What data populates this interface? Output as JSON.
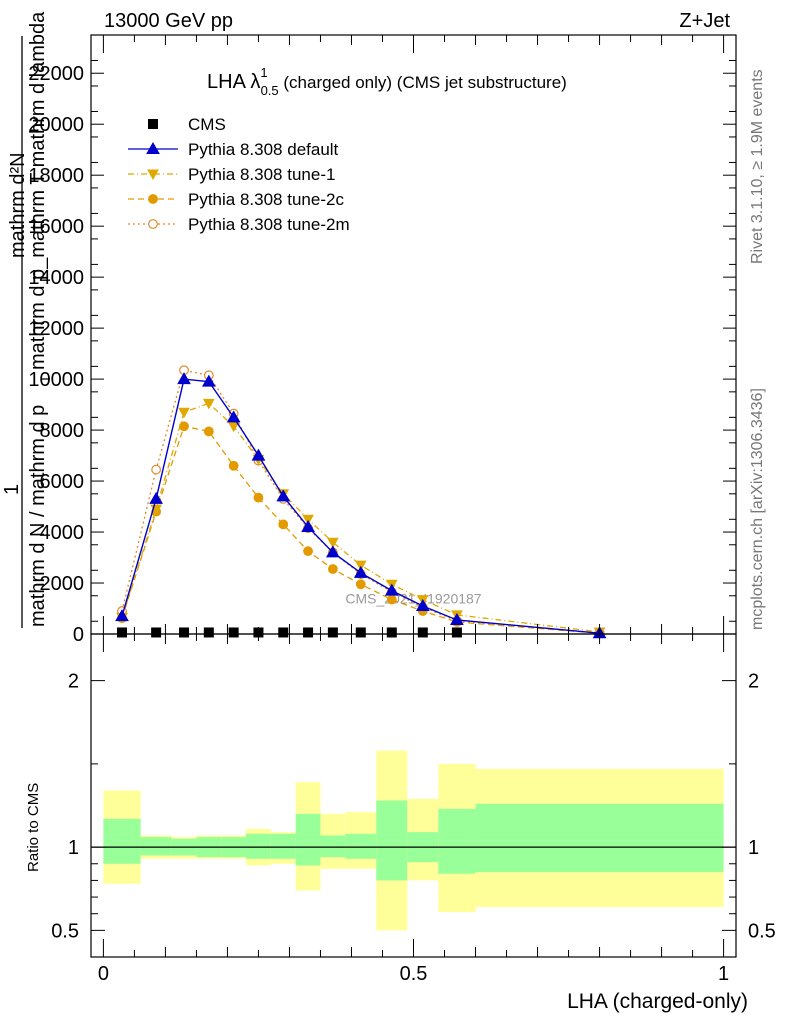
{
  "header": {
    "left": "13000 GeV pp",
    "right": "Z+Jet"
  },
  "side": {
    "rivet": "Rivet 3.1.10, ≥ 1.9M events",
    "mcplots": "mcplots.cern.ch [arXiv:1306.3436]"
  },
  "colors": {
    "cms": "#000000",
    "default": "#0000cc",
    "tune1": "#e0a800",
    "tune2c": "#e39a00",
    "tune2m": "#e08a2a",
    "band_inner": "#99ff99",
    "band_outer": "#ffff99"
  },
  "chart_data": [
    {
      "type": "line",
      "title_main": "LHA λ",
      "title_sup": "1",
      "title_sub": "0.5",
      "title_rest": " (charged only) (CMS jet substructure)",
      "ylabel_top": "mathrm d²N",
      "ylabel_frac": "1",
      "ylabel_mid": "mathrm d p_mathrm T mathrm d lambda",
      "ylabel_bottom": "mathrm d N / mathrm d p",
      "ylabel_sub": "T",
      "ylim": [
        0,
        23500
      ],
      "yticks": [
        0,
        2000,
        4000,
        6000,
        8000,
        10000,
        12000,
        14000,
        16000,
        18000,
        20000,
        22000
      ],
      "ytick_labels": [
        "0",
        "2000",
        "4000",
        "6000",
        "8000",
        "10000",
        "12000",
        "14000",
        "16000",
        "18000",
        "20000",
        "22000"
      ],
      "xlim": [
        -0.02,
        1.02
      ],
      "watermark": "CMS_2021_I1920187",
      "legend": [
        {
          "key": "cms",
          "label": "CMS"
        },
        {
          "key": "default",
          "label": "Pythia 8.308 default"
        },
        {
          "key": "tune1",
          "label": "Pythia 8.308 tune-1"
        },
        {
          "key": "tune2c",
          "label": "Pythia 8.308 tune-2c"
        },
        {
          "key": "tune2m",
          "label": "Pythia 8.308 tune-2m"
        }
      ],
      "cms_points": {
        "x": [
          0.03,
          0.085,
          0.13,
          0.17,
          0.21,
          0.25,
          0.29,
          0.33,
          0.37,
          0.415,
          0.465,
          0.515,
          0.57
        ],
        "y": [
          60,
          60,
          60,
          60,
          60,
          60,
          60,
          60,
          60,
          60,
          60,
          60,
          60
        ]
      },
      "series": [
        {
          "name": "Pythia 8.308 default",
          "key": "default",
          "x": [
            0.03,
            0.085,
            0.13,
            0.17,
            0.21,
            0.25,
            0.29,
            0.33,
            0.37,
            0.415,
            0.465,
            0.515,
            0.57,
            0.8
          ],
          "y": [
            700,
            5300,
            10000,
            9900,
            8500,
            7000,
            5400,
            4200,
            3200,
            2400,
            1700,
            1100,
            550,
            30
          ]
        },
        {
          "name": "Pythia 8.308 tune-1",
          "key": "tune1",
          "x": [
            0.03,
            0.085,
            0.13,
            0.17,
            0.21,
            0.25,
            0.29,
            0.33,
            0.37,
            0.415,
            0.465,
            0.515,
            0.57,
            0.8
          ],
          "y": [
            650,
            4900,
            8700,
            9050,
            8150,
            6850,
            5500,
            4500,
            3600,
            2700,
            1950,
            1350,
            750,
            80
          ]
        },
        {
          "name": "Pythia 8.308 tune-2c",
          "key": "tune2c",
          "x": [
            0.03,
            0.085,
            0.13,
            0.17,
            0.21,
            0.25,
            0.29,
            0.33,
            0.37,
            0.415,
            0.465,
            0.515,
            0.57,
            0.8
          ],
          "y": [
            620,
            4800,
            8150,
            7950,
            6600,
            5350,
            4300,
            3250,
            2550,
            1950,
            1350,
            900,
            470,
            30
          ]
        },
        {
          "name": "Pythia 8.308 tune-2m",
          "key": "tune2m",
          "x": [
            0.03,
            0.085,
            0.13,
            0.17,
            0.21,
            0.25,
            0.29,
            0.33,
            0.37,
            0.415,
            0.465,
            0.515,
            0.57,
            0.8
          ],
          "y": [
            900,
            6450,
            10350,
            10150,
            8650,
            6800,
            5300,
            4150,
            3200,
            2350,
            1650,
            1050,
            520,
            30
          ]
        }
      ]
    },
    {
      "type": "area",
      "ylabel": "Ratio to CMS",
      "xlabel": "LHA (charged-only)",
      "xlim": [
        -0.02,
        1.02
      ],
      "ylim": [
        0.34,
        2.28
      ],
      "xticks": [
        0,
        0.5,
        1
      ],
      "xtick_labels": [
        "0",
        "0.5",
        "1"
      ],
      "yticks": [
        0.5,
        1,
        2
      ],
      "ytick_labels": [
        "0.5",
        "1",
        "2"
      ],
      "bins": [
        {
          "x0": 0.0,
          "x1": 0.06,
          "inner": [
            0.9,
            1.17
          ],
          "outer": [
            0.78,
            1.34
          ]
        },
        {
          "x0": 0.06,
          "x1": 0.11,
          "inner": [
            0.95,
            1.06
          ],
          "outer": [
            0.93,
            1.07
          ]
        },
        {
          "x0": 0.11,
          "x1": 0.15,
          "inner": [
            0.95,
            1.05
          ],
          "outer": [
            0.93,
            1.06
          ]
        },
        {
          "x0": 0.15,
          "x1": 0.19,
          "inner": [
            0.94,
            1.06
          ],
          "outer": [
            0.93,
            1.07
          ]
        },
        {
          "x0": 0.19,
          "x1": 0.23,
          "inner": [
            0.94,
            1.06
          ],
          "outer": [
            0.93,
            1.07
          ]
        },
        {
          "x0": 0.23,
          "x1": 0.27,
          "inner": [
            0.93,
            1.08
          ],
          "outer": [
            0.89,
            1.11
          ]
        },
        {
          "x0": 0.27,
          "x1": 0.31,
          "inner": [
            0.93,
            1.08
          ],
          "outer": [
            0.9,
            1.09
          ]
        },
        {
          "x0": 0.31,
          "x1": 0.35,
          "inner": [
            0.89,
            1.2
          ],
          "outer": [
            0.74,
            1.39
          ]
        },
        {
          "x0": 0.35,
          "x1": 0.39,
          "inner": [
            0.94,
            1.07
          ],
          "outer": [
            0.87,
            1.2
          ]
        },
        {
          "x0": 0.39,
          "x1": 0.44,
          "inner": [
            0.93,
            1.08
          ],
          "outer": [
            0.87,
            1.21
          ]
        },
        {
          "x0": 0.44,
          "x1": 0.49,
          "inner": [
            0.8,
            1.28
          ],
          "outer": [
            0.5,
            1.58
          ]
        },
        {
          "x0": 0.49,
          "x1": 0.54,
          "inner": [
            0.91,
            1.09
          ],
          "outer": [
            0.8,
            1.29
          ]
        },
        {
          "x0": 0.54,
          "x1": 0.6,
          "inner": [
            0.84,
            1.23
          ],
          "outer": [
            0.61,
            1.5
          ]
        },
        {
          "x0": 0.6,
          "x1": 1.0,
          "inner": [
            0.85,
            1.26
          ],
          "outer": [
            0.64,
            1.47
          ]
        }
      ]
    }
  ]
}
